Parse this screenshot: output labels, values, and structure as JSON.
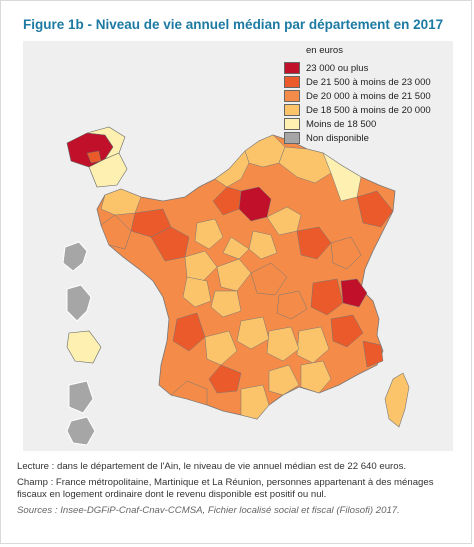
{
  "title": "Figure 1b - Niveau de vie annuel médian par département en 2017",
  "legend": {
    "unit": "en euros",
    "items": [
      {
        "label": "23 000 ou plus",
        "color": "#c0102a"
      },
      {
        "label": "De 21 500 à moins de 23 000",
        "color": "#ea5a2a"
      },
      {
        "label": "De 20 000 à moins de 21 500",
        "color": "#f48b48"
      },
      {
        "label": "De 18 500 à moins de 20 000",
        "color": "#fbc46a"
      },
      {
        "label": "Moins de 18 500",
        "color": "#fdf0b0"
      },
      {
        "label": "Non disponible",
        "color": "#a6a6a6"
      }
    ]
  },
  "notes": {
    "lecture": "Lecture : dans le département de l'Ain, le niveau de vie annuel médian est de 22 640 euros.",
    "champ": "Champ : France métropolitaine, Martinique et La Réunion, personnes appartenant à des ménages fiscaux en logement ordinaire dont le revenu disponible est positif ou nul.",
    "sources": "Sources : Insee-DGFiP-Cnaf-Cnav-CCMSA, Fichier localisé social et fiscal (Filosofi) 2017."
  }
}
